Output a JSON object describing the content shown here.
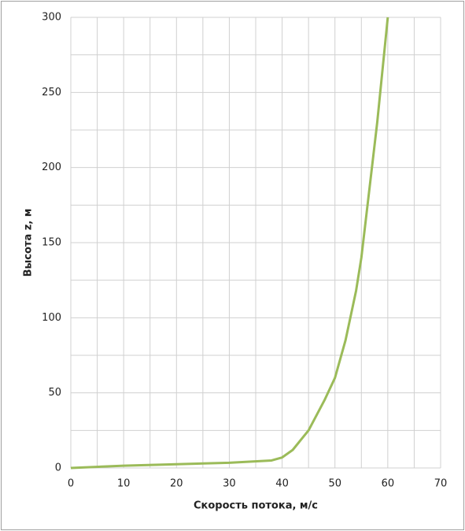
{
  "chart_data": {
    "type": "line",
    "xlabel": "Скорость потока, м/с",
    "ylabel": "Высота z, м",
    "x": [
      0,
      10,
      20,
      30,
      38,
      40,
      42,
      45,
      48,
      50,
      52,
      54,
      55,
      56,
      58,
      60
    ],
    "values": [
      0,
      1.5,
      2.5,
      3.5,
      5,
      7,
      12,
      25,
      45,
      60,
      85,
      118,
      140,
      170,
      230,
      300
    ],
    "color": "#9bbb59",
    "xlim": [
      0,
      70
    ],
    "xticks": [
      0,
      10,
      20,
      30,
      40,
      50,
      60,
      70
    ],
    "ylim": [
      0,
      300
    ],
    "yticks": [
      0,
      50,
      100,
      150,
      200,
      250,
      300
    ],
    "xminor": [
      5,
      15,
      25,
      35,
      45,
      55,
      65
    ],
    "yminor": [
      25,
      75,
      125,
      175,
      225,
      275
    ],
    "grid": true
  }
}
